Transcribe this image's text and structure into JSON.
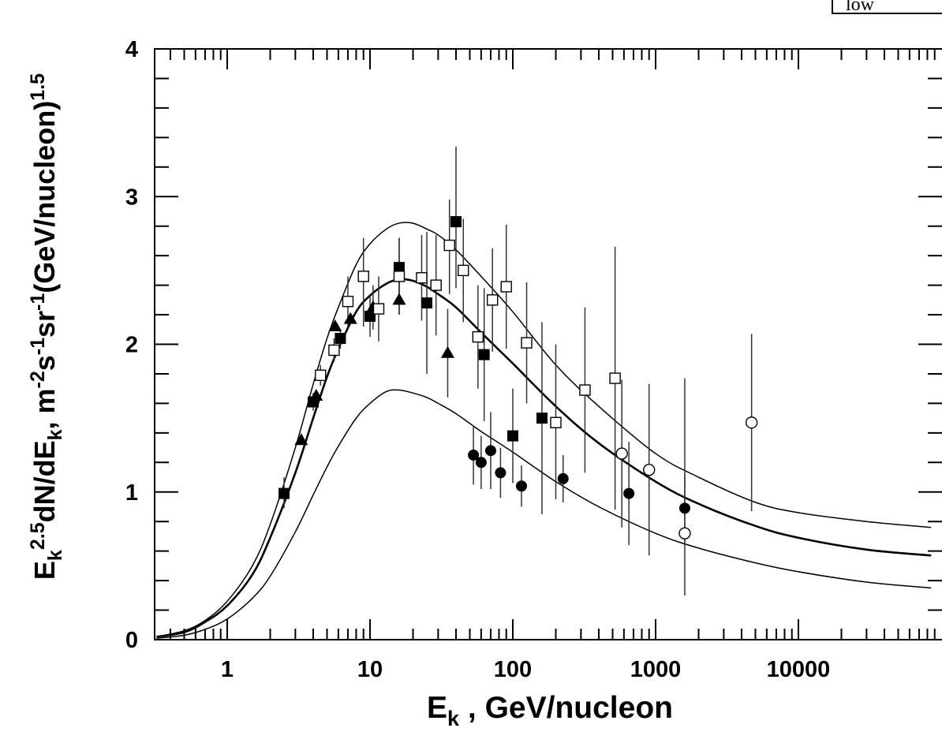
{
  "chart_data": {
    "type": "scatter",
    "xscale": "log",
    "xlim": [
      0.32,
      85000
    ],
    "ylim": [
      0,
      4
    ],
    "x_tick_labels": [
      "1",
      "10",
      "100",
      "1000",
      "10000"
    ],
    "y_tick_labels": [
      "0",
      "1",
      "2",
      "3",
      "4"
    ],
    "xlabel": {
      "base": "E",
      "sub": "k",
      "rest": " , GeV/nucleon"
    },
    "ylabel": [
      {
        "t": "E"
      },
      {
        "t": "k",
        "s": "sub"
      },
      {
        "t": "2.5",
        "s": "sup"
      },
      {
        "t": "dN/dE"
      },
      {
        "t": "k",
        "s": "sub"
      },
      {
        "t": ", m"
      },
      {
        "t": "-2",
        "s": "sup"
      },
      {
        "t": "s"
      },
      {
        "t": "-1",
        "s": "sup"
      },
      {
        "t": "sr"
      },
      {
        "t": "-1",
        "s": "sup"
      },
      {
        "t": "(GeV/nucleon)"
      },
      {
        "t": "1.5",
        "s": "sup"
      }
    ],
    "corner_text": "low",
    "grid": false,
    "curves": [
      {
        "style": "thin",
        "points": [
          [
            0.32,
            0.02
          ],
          [
            0.5,
            0.06
          ],
          [
            0.7,
            0.13
          ],
          [
            1,
            0.26
          ],
          [
            1.5,
            0.5
          ],
          [
            2,
            0.78
          ],
          [
            3,
            1.3
          ],
          [
            4,
            1.73
          ],
          [
            5,
            2.04
          ],
          [
            6,
            2.25
          ],
          [
            8,
            2.54
          ],
          [
            10,
            2.68
          ],
          [
            13,
            2.78
          ],
          [
            16,
            2.82
          ],
          [
            20,
            2.82
          ],
          [
            25,
            2.78
          ],
          [
            30,
            2.74
          ],
          [
            40,
            2.64
          ],
          [
            60,
            2.46
          ],
          [
            100,
            2.22
          ],
          [
            200,
            1.86
          ],
          [
            400,
            1.58
          ],
          [
            1000,
            1.26
          ],
          [
            2000,
            1.1
          ],
          [
            5000,
            0.93
          ],
          [
            10000,
            0.86
          ],
          [
            30000,
            0.8
          ],
          [
            85000,
            0.76
          ]
        ]
      },
      {
        "style": "thick",
        "points": [
          [
            0.32,
            0.02
          ],
          [
            0.5,
            0.05
          ],
          [
            0.7,
            0.12
          ],
          [
            1,
            0.23
          ],
          [
            1.5,
            0.44
          ],
          [
            2,
            0.69
          ],
          [
            3,
            1.13
          ],
          [
            4,
            1.5
          ],
          [
            5,
            1.78
          ],
          [
            6,
            1.97
          ],
          [
            8,
            2.22
          ],
          [
            10,
            2.33
          ],
          [
            13,
            2.41
          ],
          [
            16,
            2.44
          ],
          [
            20,
            2.43
          ],
          [
            25,
            2.39
          ],
          [
            30,
            2.34
          ],
          [
            40,
            2.25
          ],
          [
            60,
            2.08
          ],
          [
            100,
            1.87
          ],
          [
            200,
            1.58
          ],
          [
            400,
            1.33
          ],
          [
            1000,
            1.07
          ],
          [
            2000,
            0.92
          ],
          [
            5000,
            0.77
          ],
          [
            10000,
            0.69
          ],
          [
            30000,
            0.61
          ],
          [
            85000,
            0.57
          ]
        ]
      },
      {
        "style": "thin",
        "points": [
          [
            0.32,
            0.01
          ],
          [
            0.5,
            0.03
          ],
          [
            0.7,
            0.07
          ],
          [
            1,
            0.14
          ],
          [
            1.5,
            0.28
          ],
          [
            2,
            0.43
          ],
          [
            3,
            0.73
          ],
          [
            4,
            0.98
          ],
          [
            5,
            1.17
          ],
          [
            6,
            1.31
          ],
          [
            8,
            1.5
          ],
          [
            10,
            1.6
          ],
          [
            13,
            1.68
          ],
          [
            16,
            1.69
          ],
          [
            20,
            1.67
          ],
          [
            25,
            1.64
          ],
          [
            30,
            1.6
          ],
          [
            40,
            1.53
          ],
          [
            60,
            1.41
          ],
          [
            100,
            1.27
          ],
          [
            200,
            1.07
          ],
          [
            400,
            0.9
          ],
          [
            1000,
            0.72
          ],
          [
            2000,
            0.62
          ],
          [
            5000,
            0.52
          ],
          [
            10000,
            0.46
          ],
          [
            30000,
            0.39
          ],
          [
            85000,
            0.35
          ]
        ]
      }
    ],
    "series": [
      {
        "marker": "triangle-filled",
        "points": [
          [
            3.3,
            1.35,
            0,
            0
          ],
          [
            4.2,
            1.65,
            0,
            0
          ],
          [
            5.7,
            2.12,
            0,
            0
          ],
          [
            7.3,
            2.17,
            0,
            0
          ],
          [
            10.5,
            2.25,
            2.1,
            2.4
          ],
          [
            16,
            2.3,
            2.2,
            2.42
          ],
          [
            35,
            1.94,
            1.64,
            2.24
          ]
        ]
      },
      {
        "marker": "square-filled",
        "points": [
          [
            2.5,
            0.99,
            0.89,
            1.1
          ],
          [
            4,
            1.61,
            1.55,
            1.67
          ],
          [
            6.2,
            2.04,
            1.97,
            2.1
          ],
          [
            10,
            2.19,
            2.05,
            2.33
          ],
          [
            16,
            2.52,
            2.32,
            2.72
          ],
          [
            25,
            2.28,
            1.8,
            2.76
          ],
          [
            40,
            2.83,
            2.38,
            3.34
          ],
          [
            63,
            1.93,
            1.48,
            2.38
          ],
          [
            100,
            1.38,
            1.06,
            1.7
          ],
          [
            160,
            1.5,
            0.85,
            2.15
          ],
          [
            40,
            2.83,
            2.83,
            2.83
          ]
        ]
      },
      {
        "marker": "square-open",
        "points": [
          [
            4.5,
            1.79,
            1.72,
            1.86
          ],
          [
            5.6,
            1.96,
            1.88,
            2.04
          ],
          [
            7,
            2.29,
            2.12,
            2.46
          ],
          [
            9,
            2.46,
            2.12,
            2.72
          ],
          [
            11.5,
            2.24,
            2.02,
            2.46
          ],
          [
            16,
            2.46,
            2.2,
            2.72
          ],
          [
            23,
            2.45,
            2.16,
            2.74
          ],
          [
            29,
            2.4,
            2.06,
            2.74
          ],
          [
            36,
            2.67,
            2.34,
            2.98
          ],
          [
            45,
            2.5,
            2.15,
            2.85
          ],
          [
            57,
            2.05,
            1.7,
            2.4
          ],
          [
            72,
            2.3,
            1.95,
            2.65
          ],
          [
            90,
            2.39,
            1.97,
            2.81
          ],
          [
            125,
            2.01,
            1.6,
            2.42
          ],
          [
            200,
            1.47,
            0.95,
            2
          ],
          [
            320,
            1.69,
            1.13,
            2.25
          ],
          [
            520,
            1.77,
            0.88,
            2.66
          ]
        ]
      },
      {
        "marker": "circle-filled",
        "points": [
          [
            53,
            1.25,
            1.05,
            1.45
          ],
          [
            60,
            1.2,
            1.02,
            1.38
          ],
          [
            70,
            1.28,
            1.02,
            1.54
          ],
          [
            82,
            1.13,
            0.96,
            1.3
          ],
          [
            115,
            1.04,
            0.9,
            1.18
          ],
          [
            225,
            1.09,
            0.93,
            1.25
          ],
          [
            650,
            0.99,
            0.64,
            1.34
          ],
          [
            1600,
            0.89,
            0.66,
            1.12
          ]
        ]
      },
      {
        "marker": "circle-open",
        "points": [
          [
            580,
            1.26,
            0.76,
            1.76
          ],
          [
            900,
            1.15,
            0.57,
            1.73
          ],
          [
            1600,
            0.72,
            0.3,
            1.77
          ],
          [
            4700,
            1.47,
            0.87,
            2.07
          ]
        ]
      }
    ]
  }
}
